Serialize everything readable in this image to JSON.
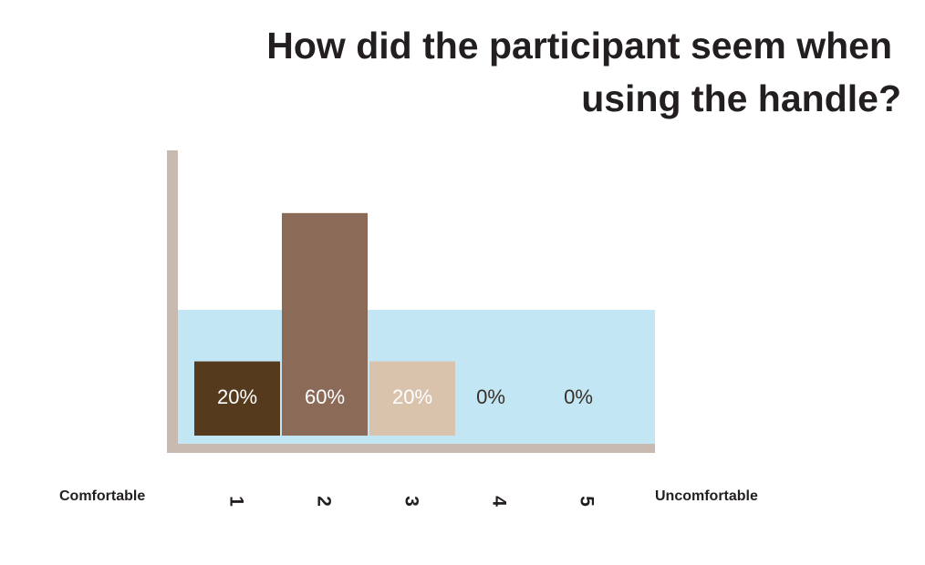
{
  "chart_data": {
    "type": "bar",
    "title": [
      "How did the participant seem when",
      "using the handle?"
    ],
    "categories": [
      "1",
      "2",
      "3",
      "4",
      "5"
    ],
    "values": [
      20,
      60,
      20,
      0,
      0
    ],
    "value_labels": [
      "20%",
      "60%",
      "20%",
      "0%",
      "0%"
    ],
    "colors": [
      "#553a1e",
      "#8b6a57",
      "#d9c3ad"
    ],
    "x_label_left": "Comfortable",
    "x_label_right": "Uncomfortable"
  }
}
